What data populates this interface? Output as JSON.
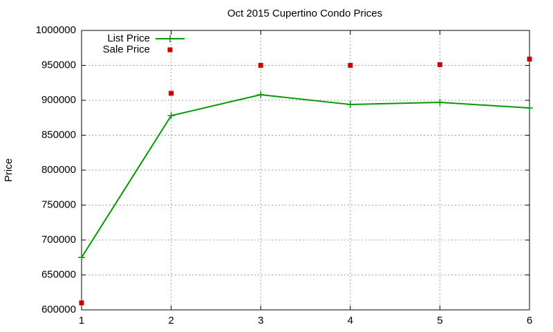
{
  "chart_data": {
    "type": "line",
    "title": "Oct 2015 Cupertino Condo Prices",
    "y_label": "Price",
    "x": [
      1,
      2,
      3,
      4,
      5,
      6
    ],
    "series": [
      {
        "name": "List Price",
        "color": "#009900",
        "marker": "plus",
        "line": true,
        "values": [
          675000,
          878000,
          908000,
          894000,
          897000,
          889000
        ]
      },
      {
        "name": "Sale Price",
        "color": "#cc0000",
        "marker": "square",
        "line": false,
        "values": [
          610000,
          910000,
          950000,
          950000,
          951000,
          959000
        ]
      }
    ],
    "xlim": [
      1,
      6
    ],
    "xticks": [
      1,
      2,
      3,
      4,
      5,
      6
    ],
    "ylim": [
      600000,
      1000000
    ],
    "yticks": [
      600000,
      650000,
      700000,
      750000,
      800000,
      850000,
      900000,
      950000,
      1000000
    ],
    "grid": true,
    "legend": "top-left"
  }
}
